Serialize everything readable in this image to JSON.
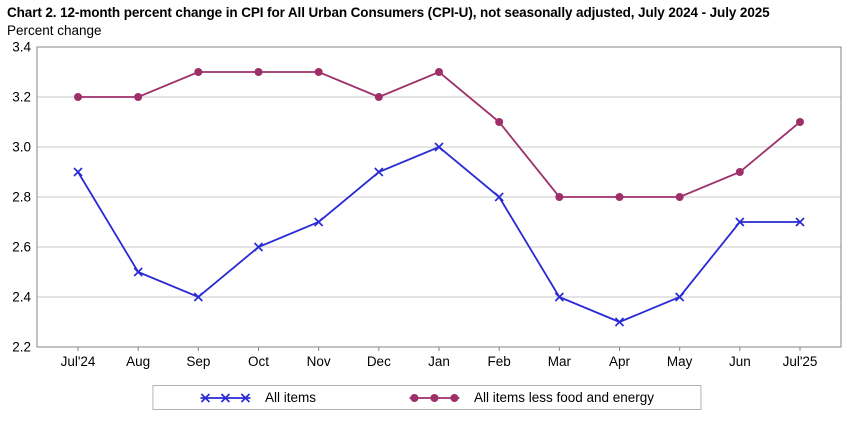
{
  "page": {
    "title": "Chart 2. 12-month percent change in CPI for All Urban Consumers (CPI-U), not seasonally adjusted, July 2024 - July 2025",
    "axis_unit_label": "Percent change"
  },
  "chart_data": {
    "type": "line",
    "title": "Chart 2. 12-month percent change in CPI for All Urban Consumers (CPI-U), not seasonally adjusted, July 2024 - July 2025",
    "ylabel": "Percent change",
    "xlabel": "",
    "categories": [
      "Jul'24",
      "Aug",
      "Sep",
      "Oct",
      "Nov",
      "Dec",
      "Jan",
      "Feb",
      "Mar",
      "Apr",
      "May",
      "Jun",
      "Jul'25"
    ],
    "series": [
      {
        "name": "All items",
        "color": "#2a2ad4",
        "marker": "x",
        "values": [
          2.9,
          2.5,
          2.4,
          2.6,
          2.7,
          2.9,
          3.0,
          2.8,
          2.4,
          2.3,
          2.4,
          2.7,
          2.7
        ]
      },
      {
        "name": "All items less food and energy",
        "color": "#9e3069",
        "marker": "circle",
        "values": [
          3.2,
          3.2,
          3.3,
          3.3,
          3.3,
          3.2,
          3.3,
          3.1,
          2.8,
          2.8,
          2.8,
          2.9,
          3.1
        ]
      }
    ],
    "ylim": [
      2.2,
      3.4
    ],
    "yticks": [
      2.2,
      2.4,
      2.6,
      2.8,
      3.0,
      3.2,
      3.4
    ],
    "grid": true,
    "legend_position": "bottom",
    "colors": {
      "gridline": "#c9c9c9",
      "plot_border": "#858585",
      "tick": "#858585",
      "text": "#000000"
    }
  }
}
